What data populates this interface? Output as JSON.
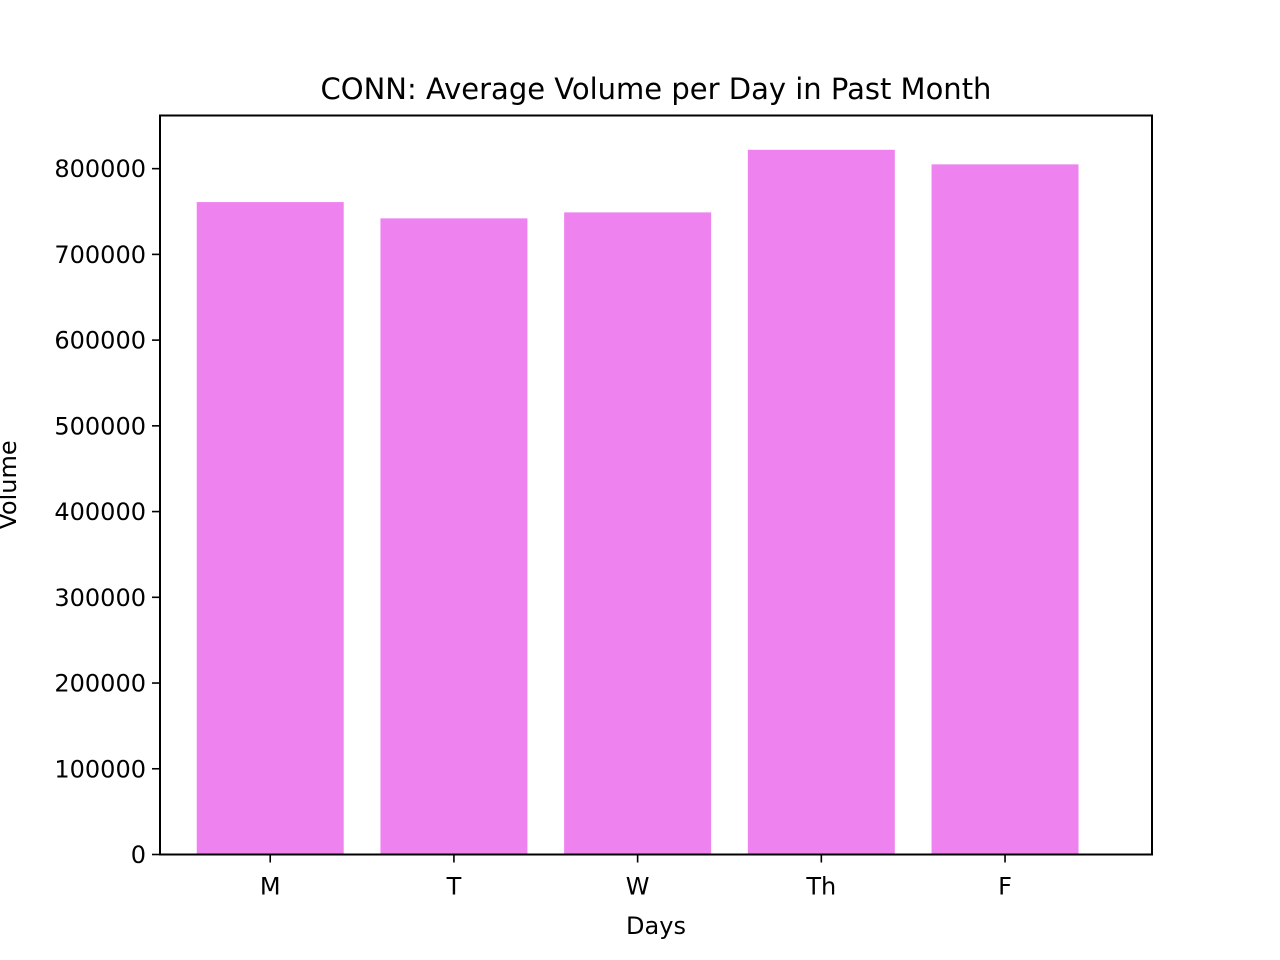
{
  "chart_data": {
    "type": "bar",
    "title": "CONN: Average Volume per Day in Past Month",
    "xlabel": "Days",
    "ylabel": "Volume",
    "categories": [
      "M",
      "T",
      "W",
      "Th",
      "F"
    ],
    "values": [
      761000,
      742000,
      749000,
      822000,
      805000
    ],
    "ylim": [
      0,
      862000
    ],
    "yticks": [
      0,
      100000,
      200000,
      300000,
      400000,
      500000,
      600000,
      700000,
      800000
    ],
    "ytick_labels": [
      "0",
      "100000",
      "200000",
      "300000",
      "400000",
      "500000",
      "600000",
      "700000",
      "800000"
    ],
    "bar_color": "#ee82ee",
    "grid": false,
    "legend": "none"
  }
}
